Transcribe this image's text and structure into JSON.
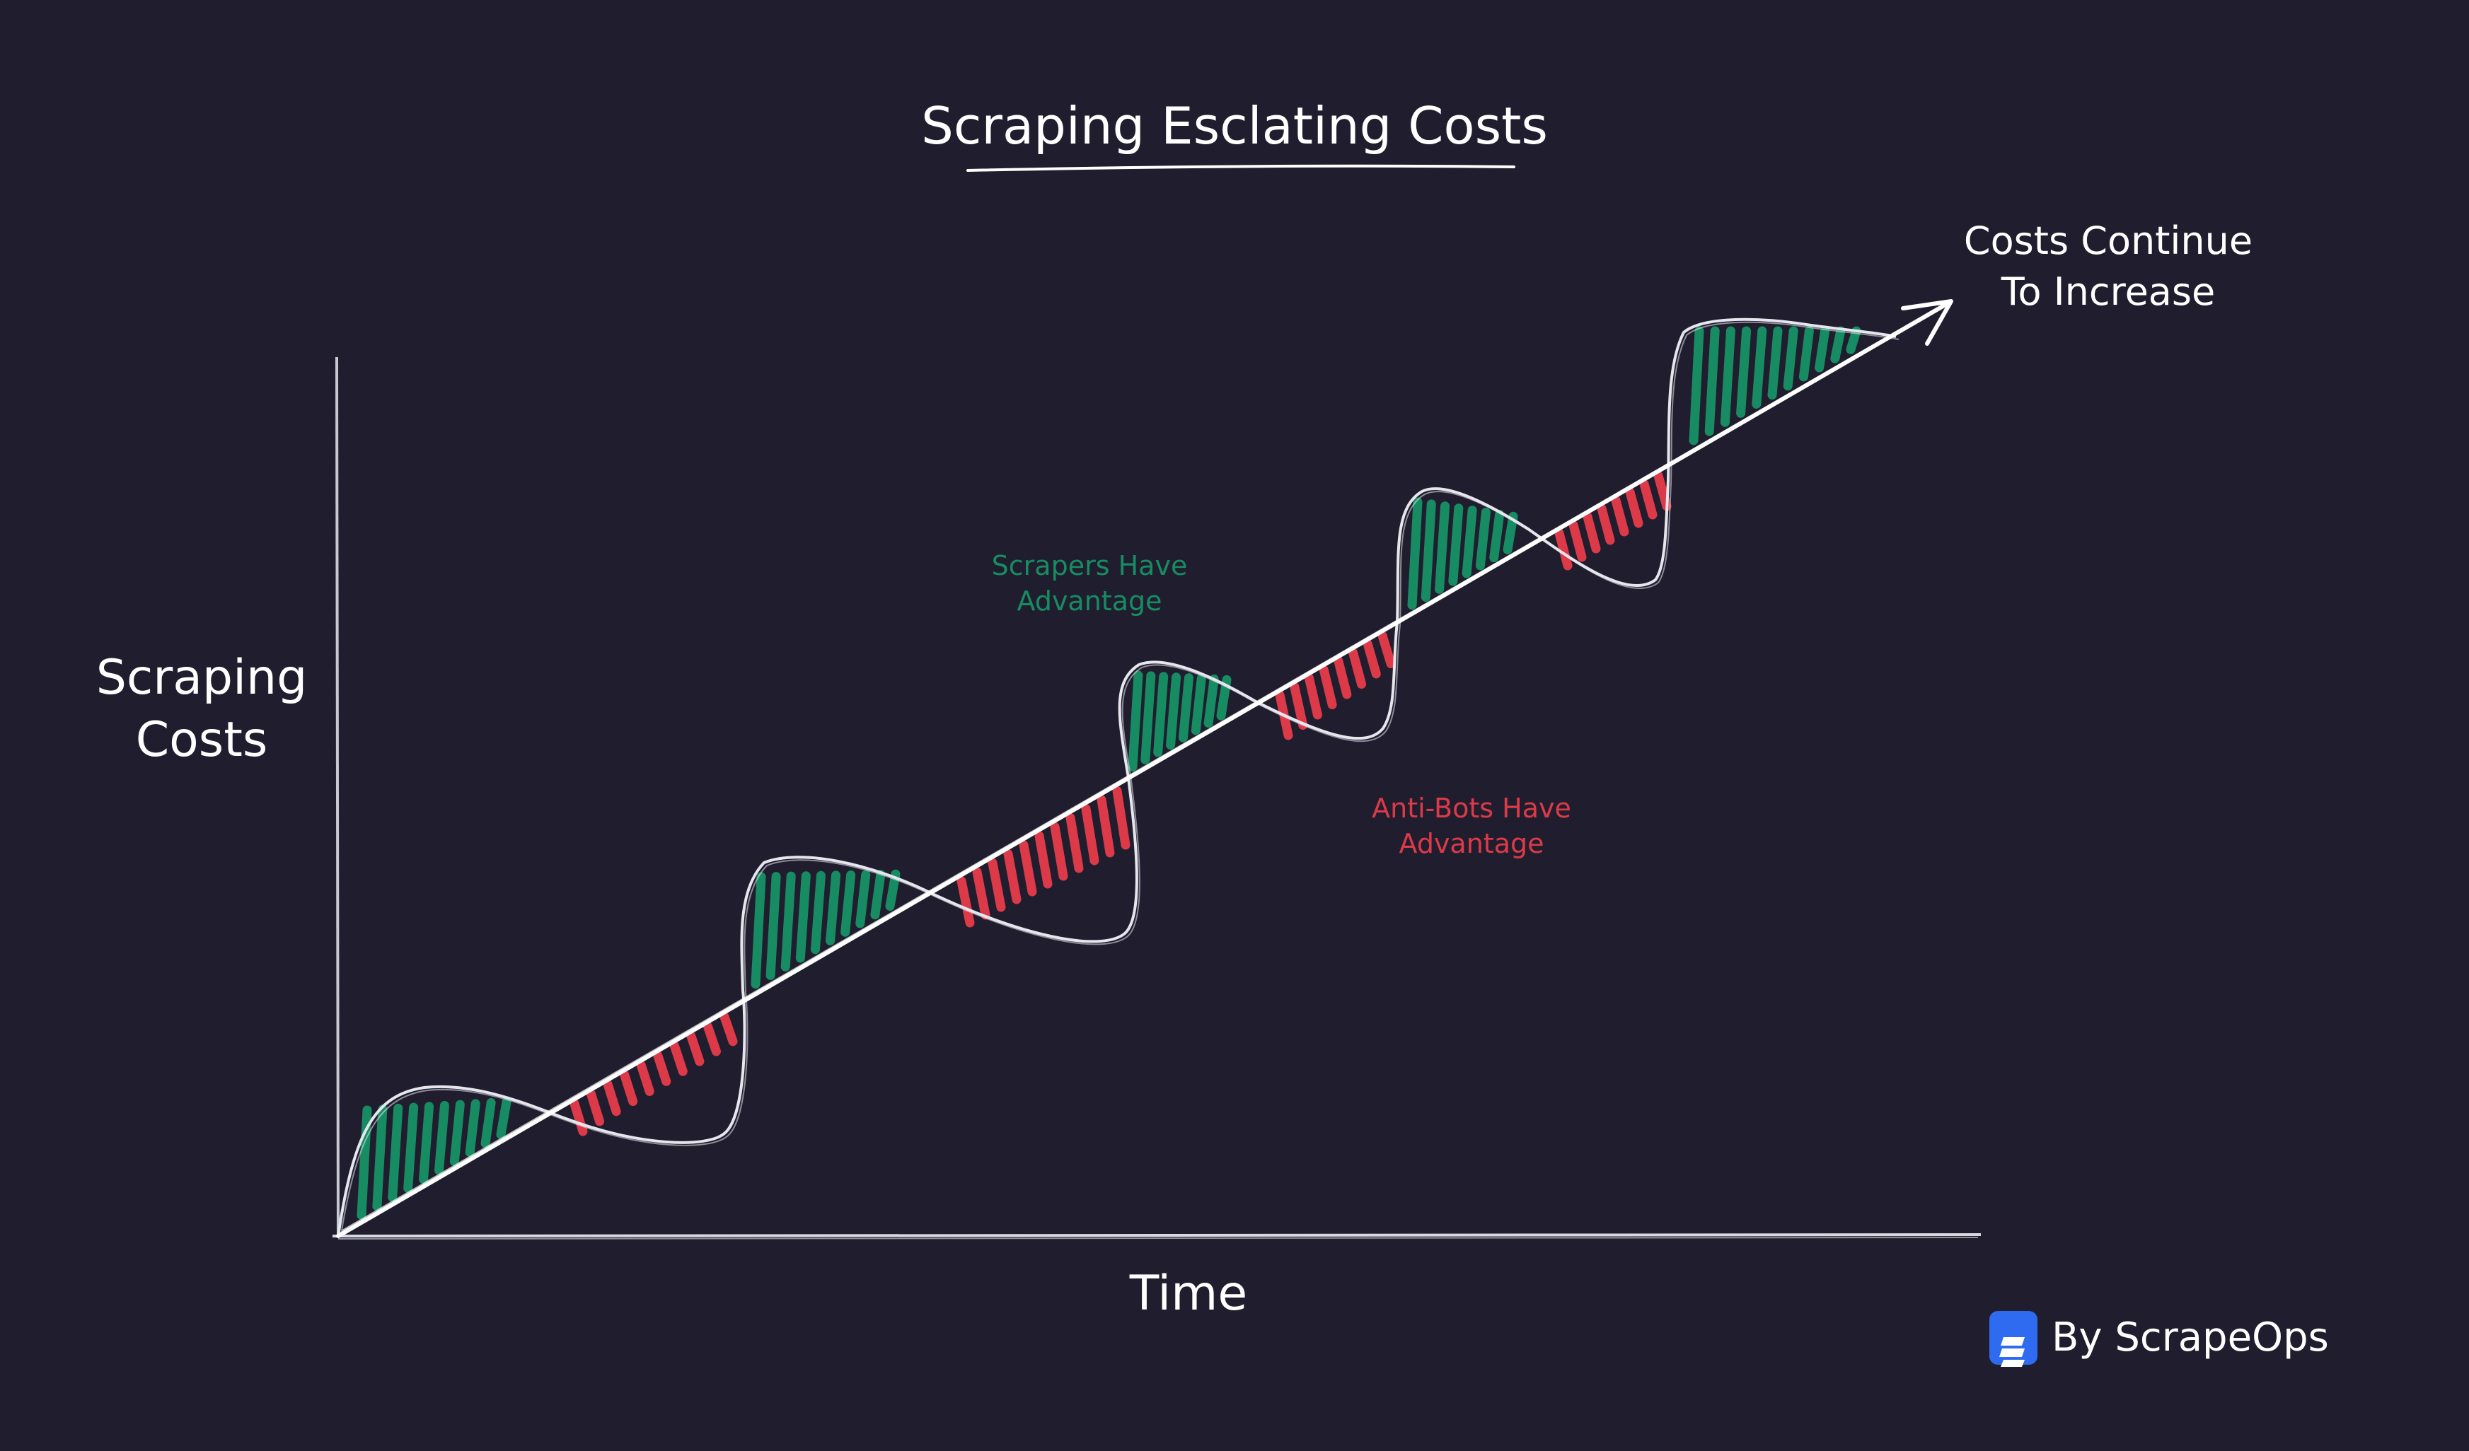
{
  "title": "Scraping Esclating Costs",
  "y_axis_label": "Scraping\nCosts",
  "x_axis_label": "Time",
  "trend_label": "Costs Continue\nTo Increase",
  "advantage_labels": {
    "scrapers": "Scrapers Have\nAdvantage",
    "antibots": "Anti-Bots Have\nAdvantage"
  },
  "credit": {
    "text": "By ScrapeOps",
    "logo_icon": "scrapeops-logo-icon"
  },
  "colors": {
    "background": "#201e2e",
    "axis": "#d8d8e0",
    "scrapers": "#178c63",
    "antibots": "#dc3a48",
    "text": "#ffffff"
  }
}
